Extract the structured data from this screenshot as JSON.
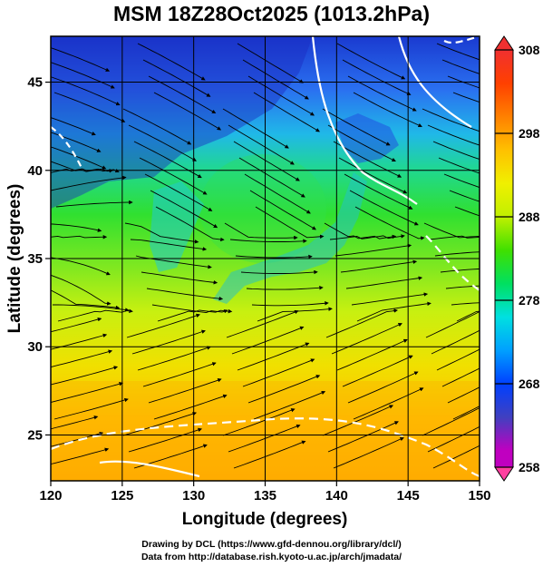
{
  "title": "MSM 18Z28Oct2025 (1013.2hPa)",
  "axes": {
    "xlabel": "Longitude (degrees)",
    "ylabel": "Latitude  (degrees)",
    "xlim": [
      120,
      150
    ],
    "ylim": [
      22.4,
      47.6
    ],
    "x_ticks": [
      "120",
      "125",
      "130",
      "135",
      "140",
      "145",
      "150"
    ],
    "y_ticks": [
      "25",
      "30",
      "35",
      "40",
      "45"
    ],
    "grid": true
  },
  "colorbar": {
    "labels": [
      "308",
      "298",
      "288",
      "278",
      "268",
      "258"
    ],
    "range": [
      258,
      308
    ],
    "colors": [
      "#ff40a0",
      "#c000c0",
      "#4040c0",
      "#0040ff",
      "#00a0ff",
      "#00e0e0",
      "#00e060",
      "#40e000",
      "#c0f000",
      "#f0f000",
      "#ffc000",
      "#ff8000",
      "#ff4000",
      "#f03030"
    ]
  },
  "chart_data": {
    "type": "heatmap",
    "variable": "temperature with streamlines",
    "level_hPa": 1013.2,
    "x_ticks": [
      120,
      125,
      130,
      135,
      140,
      145,
      150
    ],
    "y_ticks": [
      25,
      30,
      35,
      40,
      45
    ],
    "xlim": [
      120,
      150
    ],
    "ylim": [
      22.4,
      47.6
    ],
    "value_range": [
      258,
      308
    ],
    "colorbar_ticks": [
      308,
      298,
      288,
      278,
      268,
      258
    ]
  },
  "credits": {
    "line1": "Drawing by DCL (https://www.gfd-dennou.org/library/dcl/)",
    "line2": "Data from http://database.rish.kyoto-u.ac.jp/arch/jmadata/"
  }
}
